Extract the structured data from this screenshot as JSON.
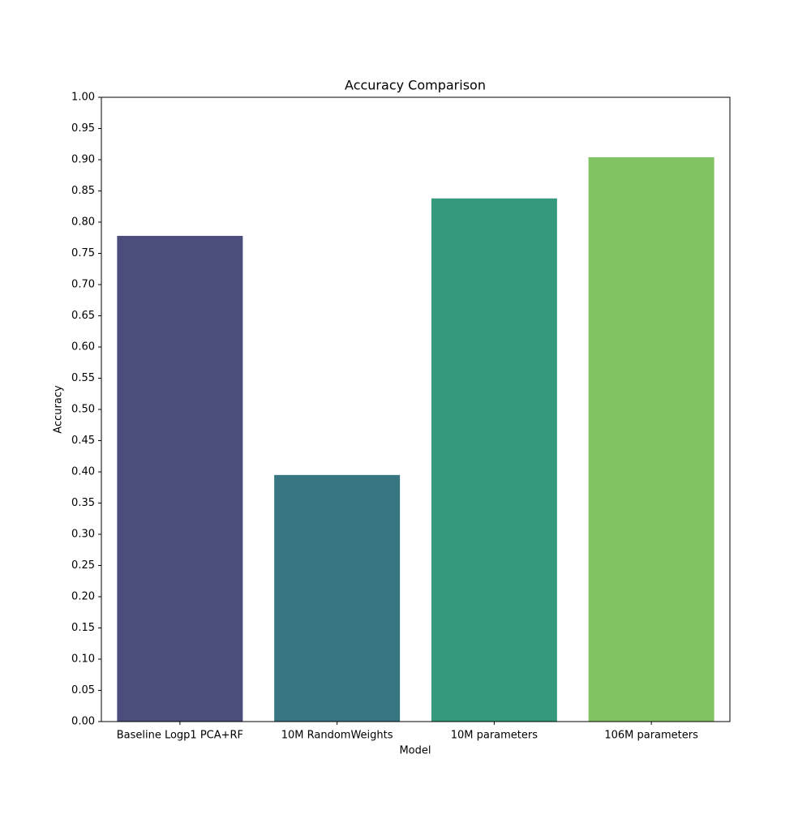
{
  "chart_data": {
    "type": "bar",
    "title": "Accuracy Comparison",
    "x_label": "Model",
    "y_label": "Accuracy",
    "categories": [
      "Baseline Logp1 PCA+RF",
      "10M RandomWeights",
      "10M parameters",
      "106M parameters"
    ],
    "values": [
      0.778,
      0.395,
      0.838,
      0.904
    ],
    "colors": [
      "#4b4e7c",
      "#377580",
      "#35997d",
      "#81c262"
    ],
    "ylim": [
      0,
      1
    ],
    "yticks": [
      {
        "value": 0,
        "label": "0.00"
      },
      {
        "value": 0.05,
        "label": "0.05"
      },
      {
        "value": 0.1,
        "label": "0.10"
      },
      {
        "value": 0.15,
        "label": "0.15"
      },
      {
        "value": 0.2,
        "label": "0.20"
      },
      {
        "value": 0.25,
        "label": "0.25"
      },
      {
        "value": 0.3,
        "label": "0.30"
      },
      {
        "value": 0.35,
        "label": "0.35"
      },
      {
        "value": 0.4,
        "label": "0.40"
      },
      {
        "value": 0.45,
        "label": "0.45"
      },
      {
        "value": 0.5,
        "label": "0.50"
      },
      {
        "value": 0.55,
        "label": "0.55"
      },
      {
        "value": 0.6,
        "label": "0.60"
      },
      {
        "value": 0.65,
        "label": "0.65"
      },
      {
        "value": 0.7,
        "label": "0.70"
      },
      {
        "value": 0.75,
        "label": "0.75"
      },
      {
        "value": 0.8,
        "label": "0.80"
      },
      {
        "value": 0.85,
        "label": "0.85"
      },
      {
        "value": 0.9,
        "label": "0.90"
      },
      {
        "value": 0.95,
        "label": "0.95"
      },
      {
        "value": 1,
        "label": "1.00"
      }
    ],
    "grid": false
  }
}
